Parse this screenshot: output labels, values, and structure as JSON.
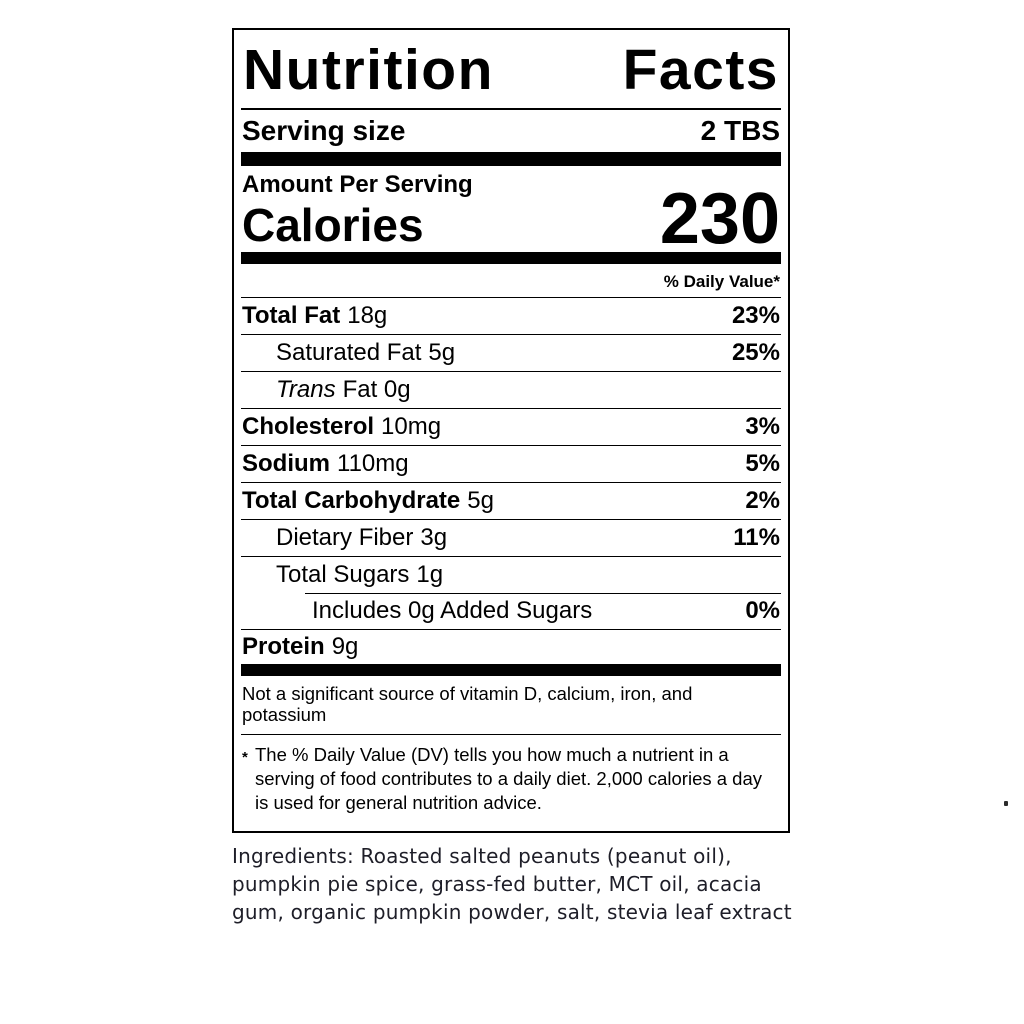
{
  "label": {
    "title_word_1": "Nutrition",
    "title_word_2": "Facts",
    "serving": {
      "label": "Serving size",
      "value": "2 TBS"
    },
    "amount_per_serving": "Amount Per Serving",
    "calories": {
      "label": "Calories",
      "value": "230"
    },
    "daily_value_header": "% Daily Value*",
    "rows": [
      {
        "name": "Total Fat",
        "amount": "18g",
        "dv": "23%"
      },
      {
        "name": "Saturated Fat",
        "amount": "5g",
        "dv": "25%"
      },
      {
        "name": "Trans",
        "amount": "Fat 0g",
        "dv": ""
      },
      {
        "name": "Cholesterol",
        "amount": "10mg",
        "dv": "3%"
      },
      {
        "name": "Sodium",
        "amount": "110mg",
        "dv": "5%"
      },
      {
        "name": "Total Carbohydrate",
        "amount": "5g",
        "dv": "2%"
      },
      {
        "name": "Dietary Fiber",
        "amount": "3g",
        "dv": "11%"
      },
      {
        "name": "Total Sugars",
        "amount": "1g",
        "dv": ""
      },
      {
        "name": "Includes 0g Added Sugars",
        "amount": "",
        "dv": "0%"
      },
      {
        "name": "Protein",
        "amount": "9g",
        "dv": ""
      }
    ],
    "not_significant": "Not a significant source of vitamin D, calcium, iron, and potassium",
    "footnote_mark": "*",
    "footnote": "The % Daily Value (DV) tells you how much a nutrient in a serving of food contributes to a daily diet. 2,000 calories a day is used for general nutrition advice.",
    "colors": {
      "ink": "#000000",
      "paper": "#ffffff"
    }
  },
  "ingredients": {
    "lines": [
      "Ingredients: Roasted salted peanuts (peanut oil),",
      "pumpkin pie spice, grass-fed butter, MCT oil, acacia",
      "gum, organic pumpkin powder, salt, stevia leaf extract"
    ]
  }
}
